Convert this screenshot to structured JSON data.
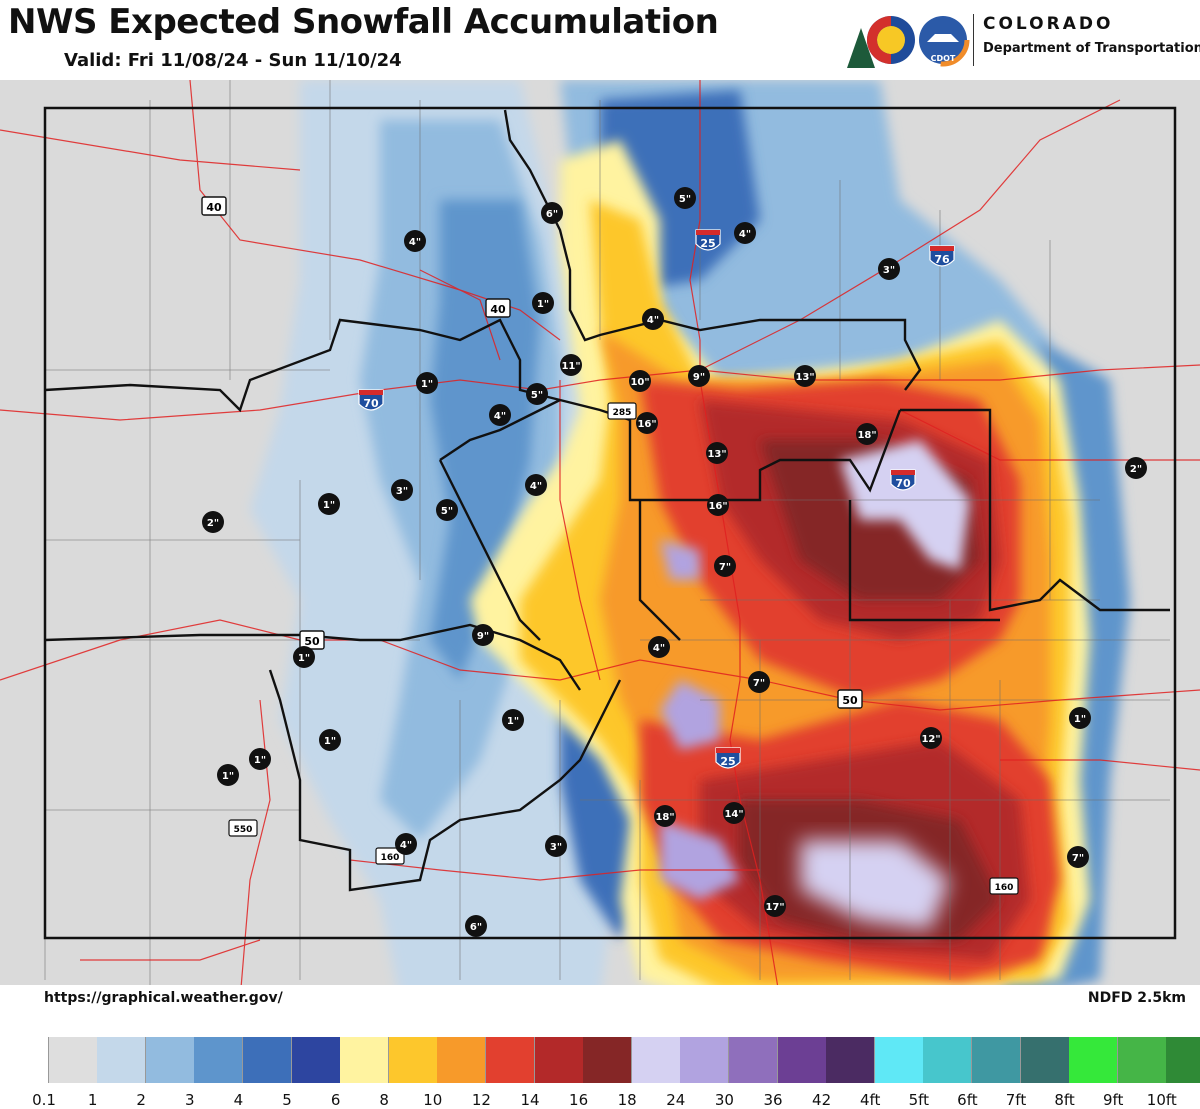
{
  "header": {
    "title": "NWS Expected Snowfall Accumulation",
    "valid": "Valid: Fri 11/08/24 - Sun 11/10/24"
  },
  "logo": {
    "name": "COLORADO",
    "department": "Department of Transportation",
    "badge": "CDOT"
  },
  "footer": {
    "source": "https://graphical.weather.gov/",
    "model": "NDFD 2.5km"
  },
  "colors": {
    "background_gray": "#dcdcdc",
    "border": "#111111",
    "roads": "#e02020"
  },
  "legend": [
    {
      "label": "0.1",
      "color": "#ffffff"
    },
    {
      "label": "1",
      "color": "#dedede"
    },
    {
      "label": "2",
      "color": "#c4d8ea"
    },
    {
      "label": "3",
      "color": "#92bbdf"
    },
    {
      "label": "4",
      "color": "#5e95cc"
    },
    {
      "label": "5",
      "color": "#3d6fb9"
    },
    {
      "label": "6",
      "color": "#2d45a0"
    },
    {
      "label": "8",
      "color": "#fff3a0"
    },
    {
      "label": "10",
      "color": "#fdc72c"
    },
    {
      "label": "12",
      "color": "#f79a2a"
    },
    {
      "label": "14",
      "color": "#e2402f"
    },
    {
      "label": "16",
      "color": "#b32929"
    },
    {
      "label": "18",
      "color": "#852626"
    },
    {
      "label": "24",
      "color": "#d5d1f2"
    },
    {
      "label": "30",
      "color": "#b1a3e0"
    },
    {
      "label": "36",
      "color": "#8f6fbc"
    },
    {
      "label": "42",
      "color": "#6c3f94"
    },
    {
      "label": "4ft",
      "color": "#4b2b62"
    },
    {
      "label": "5ft",
      "color": "#5fe8f6"
    },
    {
      "label": "6ft",
      "color": "#47c6cc"
    },
    {
      "label": "7ft",
      "color": "#3f98a2"
    },
    {
      "label": "8ft",
      "color": "#36706e"
    },
    {
      "label": "9ft",
      "color": "#35e83a"
    },
    {
      "label": "10ft",
      "color": "#45b547"
    },
    {
      "label": "",
      "color": "#2f8a36"
    }
  ],
  "highways": [
    {
      "kind": "us",
      "label": "40"
    },
    {
      "kind": "us",
      "label": "40"
    },
    {
      "kind": "interstate",
      "label": "25"
    },
    {
      "kind": "interstate",
      "label": "76"
    },
    {
      "kind": "interstate",
      "label": "70"
    },
    {
      "kind": "us",
      "label": "285"
    },
    {
      "kind": "interstate",
      "label": "70"
    },
    {
      "kind": "us",
      "label": "50"
    },
    {
      "kind": "us",
      "label": "50"
    },
    {
      "kind": "interstate",
      "label": "25"
    },
    {
      "kind": "us",
      "label": "550"
    },
    {
      "kind": "us",
      "label": "160"
    },
    {
      "kind": "us",
      "label": "160"
    }
  ],
  "snow_points": [
    "6\"",
    "5\"",
    "4\"",
    "4\"",
    "3\"",
    "1\"",
    "4\"",
    "11\"",
    "5\"",
    "10\"",
    "9\"",
    "13\"",
    "1\"",
    "4\"",
    "16\"",
    "18\"",
    "13\"",
    "2\"",
    "4\"",
    "16\"",
    "3\"",
    "1\"",
    "5\"",
    "2\"",
    "7\"",
    "9\"",
    "4\"",
    "1\"",
    "7\"",
    "1\"",
    "1\"",
    "1\"",
    "1\"",
    "12\"",
    "1\"",
    "14\"",
    "18\"",
    "3\"",
    "4\"",
    "7\"",
    "17\"",
    "6\""
  ]
}
